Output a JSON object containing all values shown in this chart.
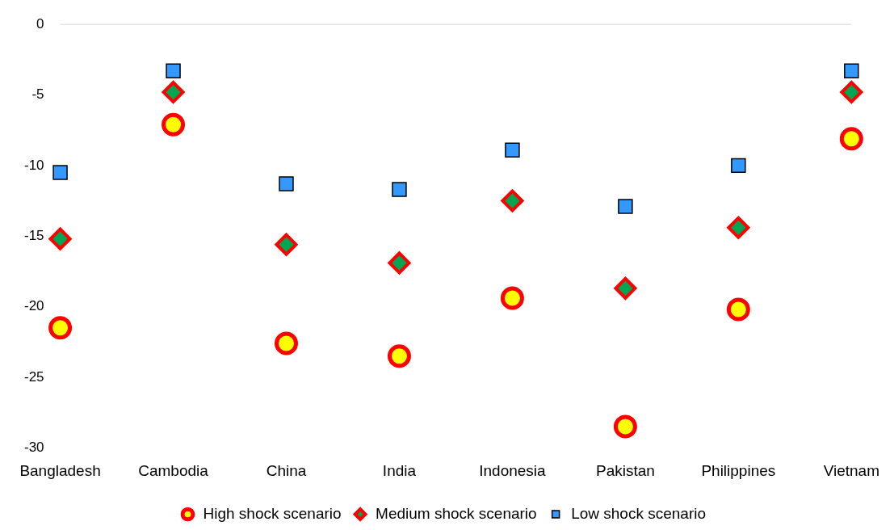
{
  "chart_data": {
    "type": "scatter",
    "categories": [
      "Bangladesh",
      "Cambodia",
      "China",
      "India",
      "Indonesia",
      "Pakistan",
      "Philippines",
      "Vietnam"
    ],
    "series": [
      {
        "name": "High shock scenario",
        "color": "#ffff00",
        "marker": "circle",
        "values": [
          -21.5,
          -7.1,
          -22.6,
          -23.5,
          -19.4,
          -28.5,
          -20.2,
          -8.1
        ]
      },
      {
        "name": "Medium shock scenario",
        "color": "#00a651",
        "marker": "diamond",
        "values": [
          -15.2,
          -4.8,
          -15.6,
          -16.9,
          -12.5,
          -18.7,
          -14.4,
          -4.8
        ]
      },
      {
        "name": "Low shock scenario",
        "color": "#3399ff",
        "marker": "square",
        "values": [
          -10.5,
          -3.3,
          -11.3,
          -11.7,
          -8.9,
          -12.9,
          -10.0,
          -3.3
        ]
      }
    ],
    "ylim": [
      -30,
      0
    ],
    "yticks": [
      0,
      -5,
      -10,
      -15,
      -20,
      -25,
      -30
    ],
    "grid": false,
    "legend": "bottom"
  }
}
